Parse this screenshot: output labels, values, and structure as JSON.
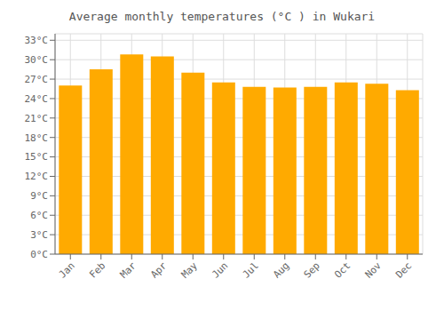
{
  "chart_data": {
    "type": "bar",
    "title": "Average monthly temperatures (°C ) in Wukari",
    "categories": [
      "Jan",
      "Feb",
      "Mar",
      "Apr",
      "May",
      "Jun",
      "Jul",
      "Aug",
      "Sep",
      "Oct",
      "Nov",
      "Dec"
    ],
    "values": [
      26.0,
      28.5,
      30.8,
      30.5,
      28.0,
      26.5,
      25.8,
      25.7,
      25.8,
      26.5,
      26.3,
      25.3
    ],
    "color": "#FFAA00",
    "ylim": [
      0,
      34
    ],
    "yticks": [
      {
        "value": 0,
        "label": "0°C"
      },
      {
        "value": 3,
        "label": "3°C"
      },
      {
        "value": 6,
        "label": "6°C"
      },
      {
        "value": 9,
        "label": "9°C"
      },
      {
        "value": 12,
        "label": "12°C"
      },
      {
        "value": 15,
        "label": "15°C"
      },
      {
        "value": 18,
        "label": "18°C"
      },
      {
        "value": 21,
        "label": "21°C"
      },
      {
        "value": 24,
        "label": "24°C"
      },
      {
        "value": 27,
        "label": "27°C"
      },
      {
        "value": 30,
        "label": "30°C"
      },
      {
        "value": 33,
        "label": "33°C"
      }
    ],
    "grid": true
  }
}
